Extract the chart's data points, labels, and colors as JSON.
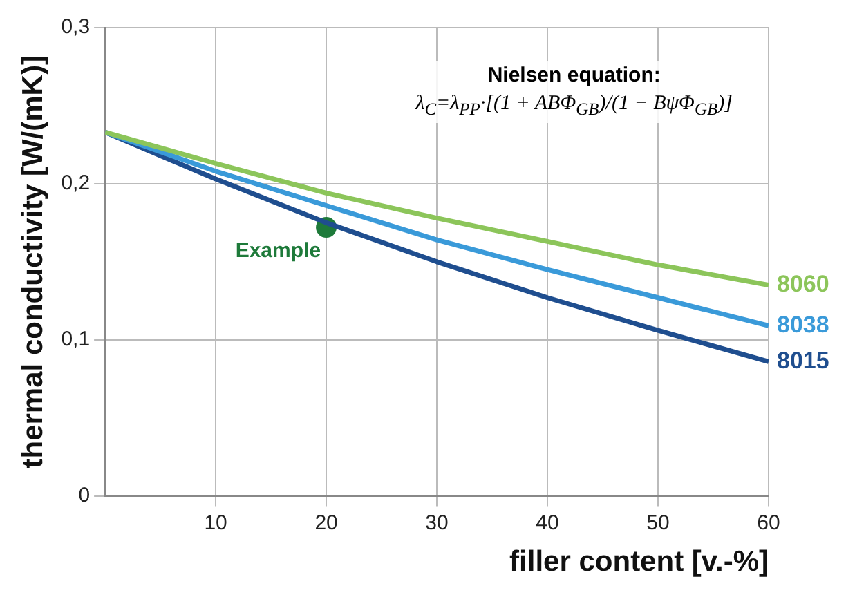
{
  "chart_data": {
    "type": "line",
    "xlabel": "filler content [v.-%]",
    "ylabel": "thermal conductivity [W/(mK)]",
    "xlim": [
      0,
      60
    ],
    "xticks": [
      10,
      20,
      30,
      40,
      50,
      60
    ],
    "ylim": [
      0,
      0.3
    ],
    "yticks": [
      {
        "value": 0,
        "label": "0"
      },
      {
        "value": 0.1,
        "label": "0,1"
      },
      {
        "value": 0.2,
        "label": "0,2"
      },
      {
        "value": 0.3,
        "label": "0,3"
      }
    ],
    "grid": true,
    "legend": false,
    "marker": "none",
    "line_style": "solid",
    "series": [
      {
        "name": "8060",
        "color": "#8cc55a",
        "x": [
          0,
          10,
          20,
          30,
          40,
          50,
          60
        ],
        "values": [
          0.233,
          0.213,
          0.194,
          0.178,
          0.163,
          0.148,
          0.135
        ]
      },
      {
        "name": "8038",
        "color": "#3a9ad9",
        "x": [
          0,
          10,
          20,
          30,
          40,
          50,
          60
        ],
        "values": [
          0.233,
          0.208,
          0.186,
          0.164,
          0.145,
          0.127,
          0.109
        ]
      },
      {
        "name": "8015",
        "color": "#1f4e8f",
        "x": [
          0,
          10,
          20,
          30,
          40,
          50,
          60
        ],
        "values": [
          0.233,
          0.203,
          0.175,
          0.15,
          0.127,
          0.106,
          0.086
        ]
      },
      {
        "type": "scatter",
        "marker": "circle",
        "color": "#1e7a3a",
        "x": [
          20
        ],
        "values": [
          0.172
        ]
      }
    ],
    "annotations": [
      "Nielsen equation:",
      "λ$_{C}$=λ$_{PP}$·[(1 + ABΦ$_{GB}$)/(1 − BψΦ$_{GB}$)]",
      {
        "text": "Example",
        "x": 20,
        "y": 0.172
      }
    ]
  }
}
